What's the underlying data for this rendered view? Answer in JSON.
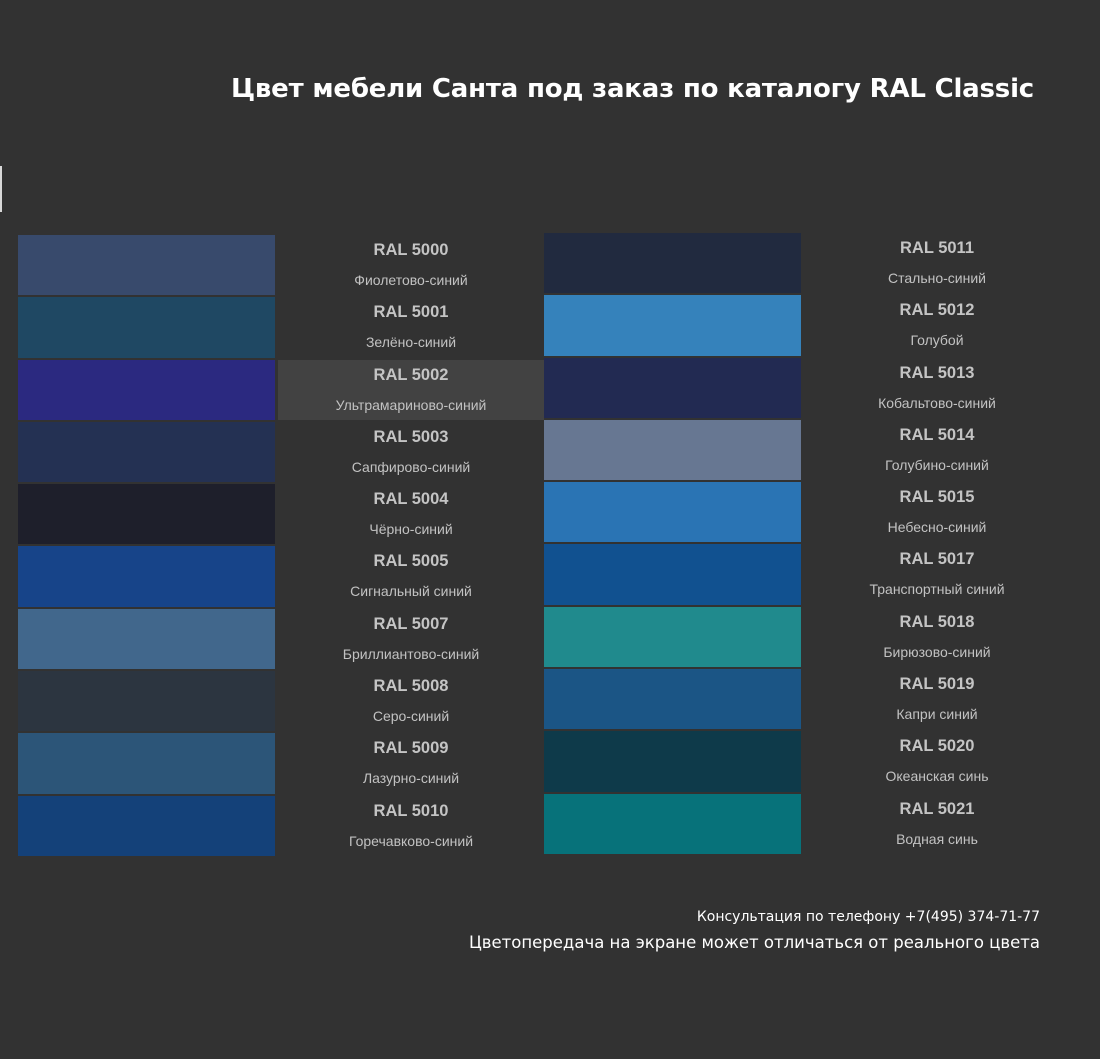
{
  "title": "Цвет мебели Санта под заказ по каталогу RAL Classic",
  "left_column": [
    {
      "code": "RAL 5000",
      "name": "Фиолетово-синий",
      "color": "#384a6c"
    },
    {
      "code": "RAL 5001",
      "name": "Зелёно-синий",
      "color": "#1f4863"
    },
    {
      "code": "RAL 5002",
      "name": "Ультрамариново-синий",
      "color": "#2b2980",
      "highlighted": true
    },
    {
      "code": "RAL 5003",
      "name": "Сапфирово-синий",
      "color": "#243153"
    },
    {
      "code": "RAL 5004",
      "name": "Чёрно-синий",
      "color": "#1e1f2b"
    },
    {
      "code": "RAL 5005",
      "name": "Сигнальный синий",
      "color": "#174489"
    },
    {
      "code": "RAL 5007",
      "name": "Бриллиантово-синий",
      "color": "#41678c"
    },
    {
      "code": "RAL 5008",
      "name": "Серо-синий",
      "color": "#2c3540"
    },
    {
      "code": "RAL 5009",
      "name": "Лазурно-синий",
      "color": "#2c5578"
    },
    {
      "code": "RAL 5010",
      "name": "Горечавково-синий",
      "color": "#144179"
    }
  ],
  "right_column": [
    {
      "code": "RAL 5011",
      "name": "Стально-синий",
      "color": "#212a3f"
    },
    {
      "code": "RAL 5012",
      "name": "Голубой",
      "color": "#3582bb"
    },
    {
      "code": "RAL 5013",
      "name": "Кобальтово-синий",
      "color": "#222a52"
    },
    {
      "code": "RAL 5014",
      "name": "Голубино-синий",
      "color": "#677792"
    },
    {
      "code": "RAL 5015",
      "name": "Небесно-синий",
      "color": "#2a74b4"
    },
    {
      "code": "RAL 5017",
      "name": "Транспортный синий",
      "color": "#115190"
    },
    {
      "code": "RAL 5018",
      "name": "Бирюзово-синий",
      "color": "#208a8d"
    },
    {
      "code": "RAL 5019",
      "name": "Капри синий",
      "color": "#1b5585"
    },
    {
      "code": "RAL 5020",
      "name": "Океанская синь",
      "color": "#0e3a4a"
    },
    {
      "code": "RAL 5021",
      "name": "Водная синь",
      "color": "#07727a"
    }
  ],
  "footer": {
    "phone": "Консультация по телефону +7(495) 374-71-77",
    "note": "Цветопередача на экране может отличаться от реального цвета"
  }
}
